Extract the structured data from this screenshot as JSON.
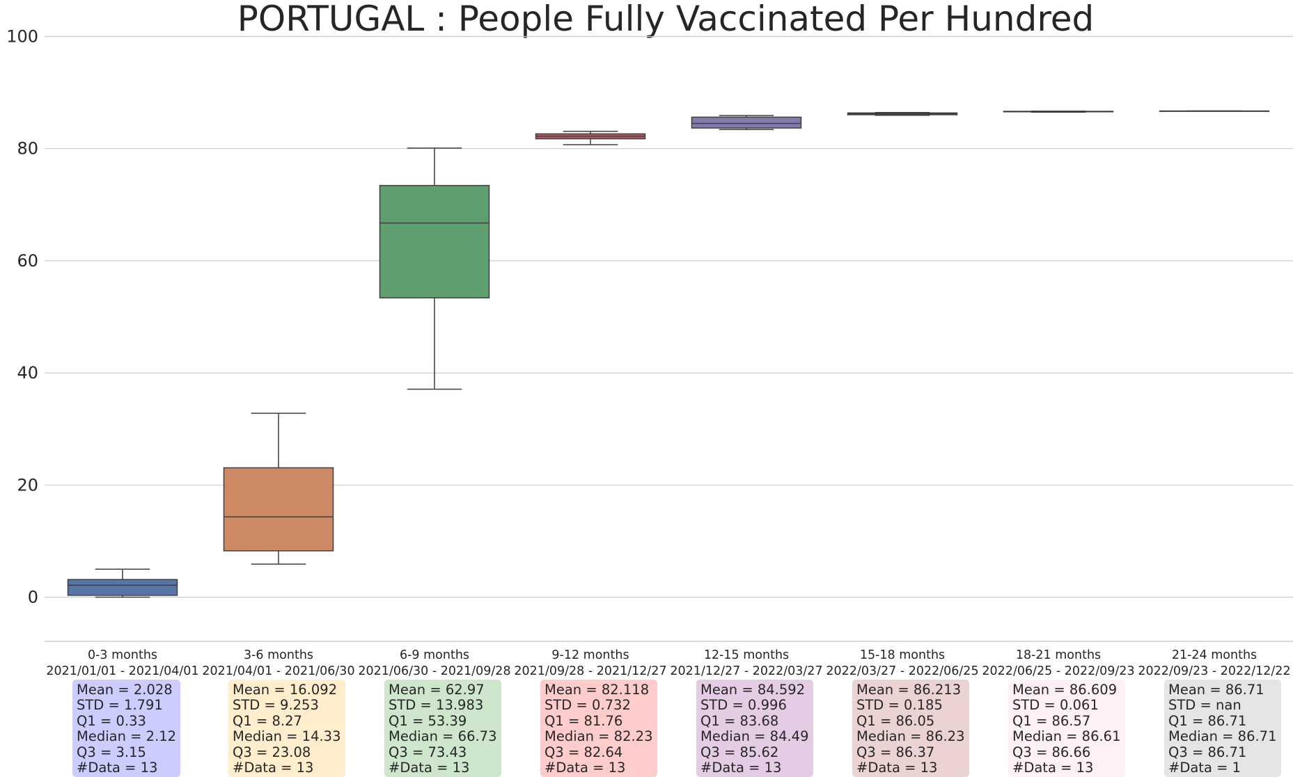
{
  "chart_data": {
    "type": "box",
    "title": "PORTUGAL : People Fully Vaccinated Per Hundred",
    "xlabel": "",
    "ylabel": "",
    "ylim": [
      -8,
      100
    ],
    "yticks": [
      0,
      20,
      40,
      60,
      80,
      100
    ],
    "grid": "horizontal",
    "categories": [
      {
        "label": "0-3 months",
        "range": "2021/01/01 - 2021/04/01"
      },
      {
        "label": "3-6 months",
        "range": "2021/04/01 - 2021/06/30"
      },
      {
        "label": "6-9 months",
        "range": "2021/06/30 - 2021/09/28"
      },
      {
        "label": "9-12 months",
        "range": "2021/09/28 - 2021/12/27"
      },
      {
        "label": "12-15 months",
        "range": "2021/12/27 - 2022/03/27"
      },
      {
        "label": "15-18 months",
        "range": "2022/03/27 - 2022/06/25"
      },
      {
        "label": "18-21 months",
        "range": "2022/06/25 - 2022/09/23"
      },
      {
        "label": "21-24 months",
        "range": "2022/09/23 - 2022/12/22"
      }
    ],
    "boxes": [
      {
        "whisker_low": 0.0,
        "q1": 0.33,
        "median": 2.12,
        "q3": 3.15,
        "whisker_high": 5.0,
        "color": "#5975a4"
      },
      {
        "whisker_low": 5.9,
        "q1": 8.27,
        "median": 14.33,
        "q3": 23.08,
        "whisker_high": 32.8,
        "color": "#cc8963"
      },
      {
        "whisker_low": 37.1,
        "q1": 53.39,
        "median": 66.73,
        "q3": 73.43,
        "whisker_high": 80.1,
        "color": "#5f9e6e"
      },
      {
        "whisker_low": 80.7,
        "q1": 81.76,
        "median": 82.23,
        "q3": 82.64,
        "whisker_high": 83.1,
        "color": "#b55d60"
      },
      {
        "whisker_low": 83.4,
        "q1": 83.68,
        "median": 84.49,
        "q3": 85.62,
        "whisker_high": 85.9,
        "color": "#857aab"
      },
      {
        "whisker_low": 85.95,
        "q1": 86.05,
        "median": 86.23,
        "q3": 86.37,
        "whisker_high": 86.45,
        "color": "#8d7866"
      },
      {
        "whisker_low": 86.5,
        "q1": 86.57,
        "median": 86.61,
        "q3": 86.66,
        "whisker_high": 86.7,
        "color": "#d095bf"
      },
      {
        "whisker_low": 86.71,
        "q1": 86.71,
        "median": 86.71,
        "q3": 86.71,
        "whisker_high": 86.71,
        "color": "#797979"
      }
    ],
    "stats": [
      {
        "lines": [
          "Mean = 2.028",
          "STD = 1.791",
          "Q1 = 0.33",
          "Median = 2.12",
          "Q3 = 3.15",
          "#Data = 13"
        ],
        "bg": "#ccccff"
      },
      {
        "lines": [
          "Mean = 16.092",
          "STD = 9.253",
          "Q1 = 8.27",
          "Median = 14.33",
          "Q3 = 23.08",
          "#Data = 13"
        ],
        "bg": "#ffedcc"
      },
      {
        "lines": [
          "Mean = 62.97",
          "STD = 13.983",
          "Q1 = 53.39",
          "Median = 66.73",
          "Q3 = 73.43",
          "#Data = 13"
        ],
        "bg": "#cde6cc"
      },
      {
        "lines": [
          "Mean = 82.118",
          "STD = 0.732",
          "Q1 = 81.76",
          "Median = 82.23",
          "Q3 = 82.64",
          "#Data = 13"
        ],
        "bg": "#ffcccc"
      },
      {
        "lines": [
          "Mean = 84.592",
          "STD = 0.996",
          "Q1 = 83.68",
          "Median = 84.49",
          "Q3 = 85.62",
          "#Data = 13"
        ],
        "bg": "#e5cce5"
      },
      {
        "lines": [
          "Mean = 86.213",
          "STD = 0.185",
          "Q1 = 86.05",
          "Median = 86.23",
          "Q3 = 86.37",
          "#Data = 13"
        ],
        "bg": "#ebd3d3"
      },
      {
        "lines": [
          "Mean = 86.609",
          "STD = 0.061",
          "Q1 = 86.57",
          "Median = 86.61",
          "Q3 = 86.66",
          "#Data = 13"
        ],
        "bg": "#fff0f3"
      },
      {
        "lines": [
          "Mean = 86.71",
          "STD = nan",
          "Q1 = 86.71",
          "Median = 86.71",
          "Q3 = 86.71",
          "#Data = 1"
        ],
        "bg": "#e5e5e5"
      }
    ]
  }
}
